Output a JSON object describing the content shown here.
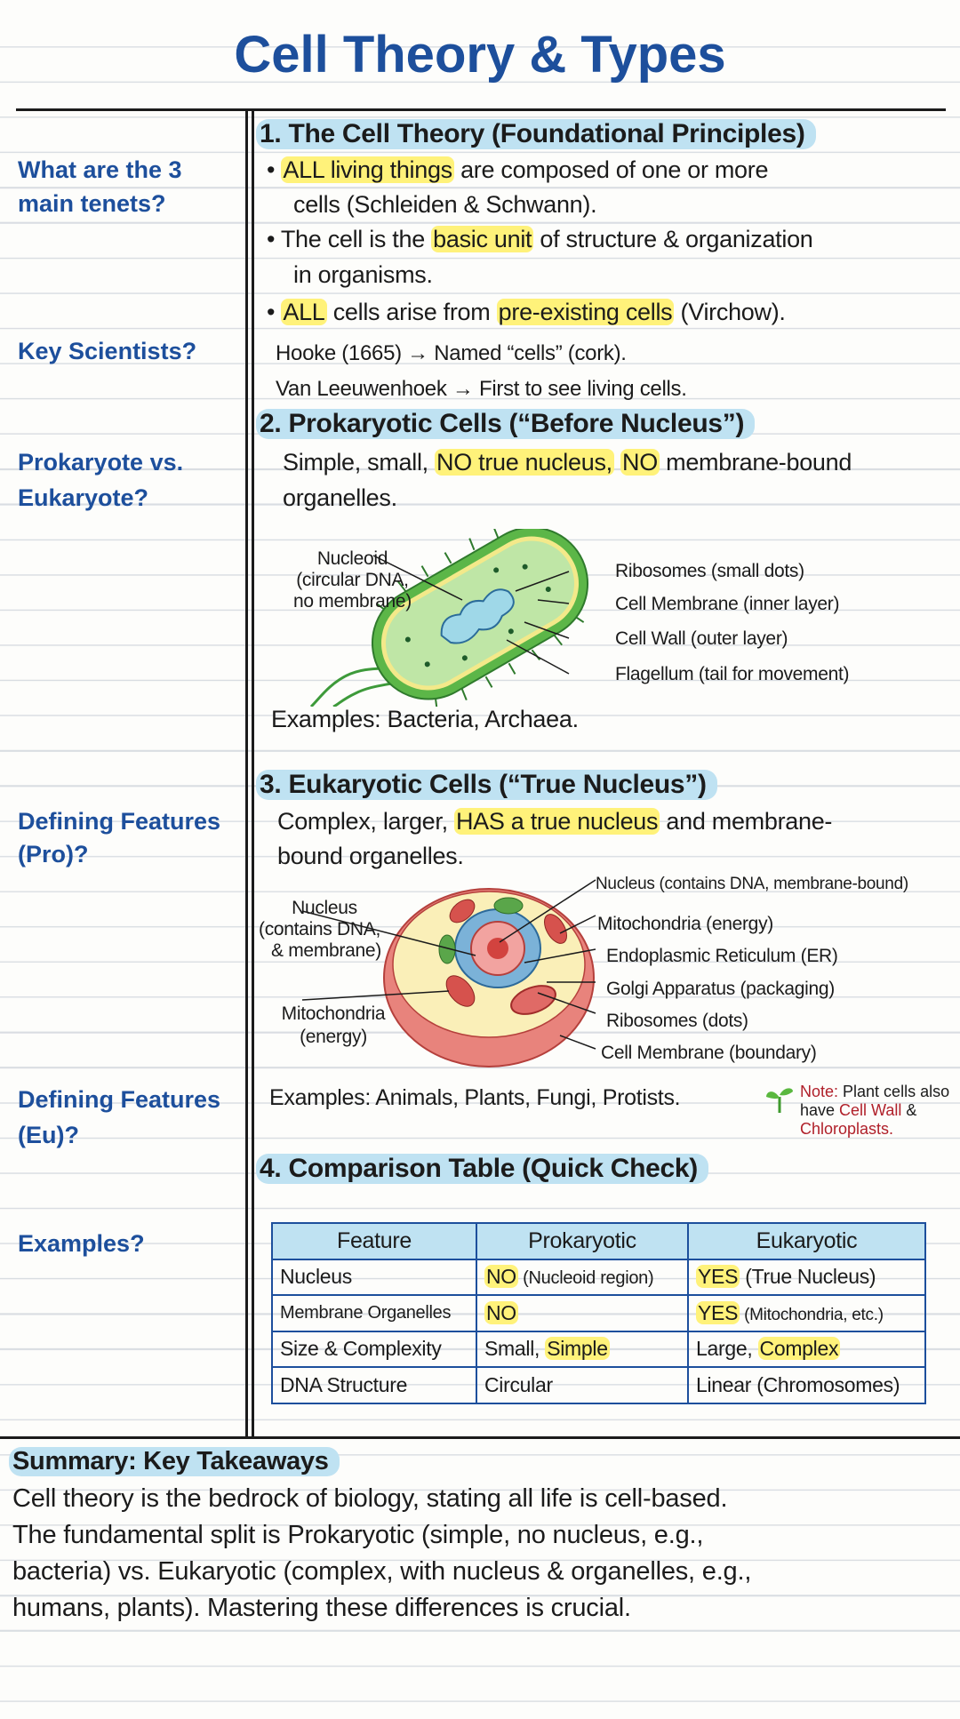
{
  "title": "Cell Theory & Types",
  "cues": [
    "What are the 3",
    "main tenets?",
    "Key Scientists?",
    "Prokaryote vs.",
    "Eukaryote?",
    "Defining Features",
    "(Pro)?",
    "Defining Features",
    "(Eu)?",
    "Examples?"
  ],
  "s1": {
    "heading": "1. The Cell Theory (Foundational Principles)",
    "b1a_pre": "• ",
    "b1a_hl": "ALL living things",
    "b1a_post": " are composed of one or more",
    "b1b": "cells (Schleiden & Schwann).",
    "b2a_pre": "• The cell is the ",
    "b2a_hl": "basic unit",
    "b2a_post": " of structure & organization",
    "b2b": "in organisms.",
    "b3_pre": "• ",
    "b3_hl1": "ALL",
    "b3_mid": " cells arise from ",
    "b3_hl2": "pre-existing cells",
    "b3_post": " (Virchow).",
    "hooke": "Hooke (1665) → Named “cells” (cork).",
    "leeuwenhoek": "Van Leeuwenhoek → First to see living cells."
  },
  "s2": {
    "heading": "2. Prokaryotic Cells (“Before Nucleus”)",
    "l1_pre": "Simple, small, ",
    "l1_hl1": "NO true nucleus,",
    "l1_hl2": "NO",
    "l1_post": " membrane-bound",
    "l2": "organelles.",
    "diagram": {
      "left": [
        "Nucleoid",
        "(circular DNA,",
        "no membrane)"
      ],
      "right": [
        "Ribosomes (small dots)",
        "Cell Membrane (inner layer)",
        "Cell Wall (outer layer)",
        "Flagellum (tail for movement)"
      ]
    },
    "examples": "Examples: Bacteria, Archaea."
  },
  "s3": {
    "heading": "3. Eukaryotic Cells (“True Nucleus”)",
    "l1_pre": "Complex, larger, ",
    "l1_hl": "HAS a true nucleus",
    "l1_post": " and membrane-",
    "l2": "bound organelles.",
    "diagram": {
      "left1": [
        "Nucleus",
        "(contains DNA,",
        "& membrane)"
      ],
      "left2": [
        "Mitochondria",
        "(energy)"
      ],
      "right": [
        "Nucleus (contains DNA, membrane-bound)",
        "Mitochondria (energy)",
        "Endoplasmic Reticulum (ER)",
        "Golgi Apparatus (packaging)",
        "Ribosomes (dots)",
        "Cell Membrane (boundary)"
      ]
    },
    "examples": "Examples: Animals, Plants, Fungi, Protists.",
    "note": {
      "label": "Note:",
      "t1": " Plant cells also have ",
      "red1": "Cell Wall",
      "t2": " & ",
      "red2": "Chloroplasts."
    }
  },
  "s4": {
    "heading": "4. Comparison Table (Quick Check)",
    "headers": [
      "Feature",
      "Prokaryotic",
      "Eukaryotic"
    ],
    "rows": [
      {
        "f": "Nucleus",
        "p_hl": "NO",
        "p": " (Nucleoid region)",
        "e_hl": "YES",
        "e": " (True Nucleus)"
      },
      {
        "f": "Membrane Organelles",
        "p_hl": "NO",
        "p": "",
        "e_hl": "YES",
        "e": " (Mitochondria, etc.)"
      },
      {
        "f": "Size & Complexity",
        "p": "Small, ",
        "p_hl": "Simple",
        "e": "Large, ",
        "e_hl": "Complex"
      },
      {
        "f": "DNA Structure",
        "p": "Circular",
        "e": "Linear (Chromosomes)"
      }
    ]
  },
  "summary": {
    "heading": "Summary: Key Takeaways",
    "lines": [
      "Cell theory is the bedrock of biology, stating all life is cell-based.",
      "The fundamental split is Prokaryotic (simple, no nucleus, e.g.,",
      "bacteria) vs. Eukaryotic (complex, with nucleus & organelles, e.g.,",
      "humans, plants). Mastering these differences is crucial."
    ]
  },
  "colors": {
    "title": "#1d4f9c",
    "highlight": "#fff27a",
    "heading_bg": "#bfe2f2",
    "note_red": "#b0202a"
  }
}
